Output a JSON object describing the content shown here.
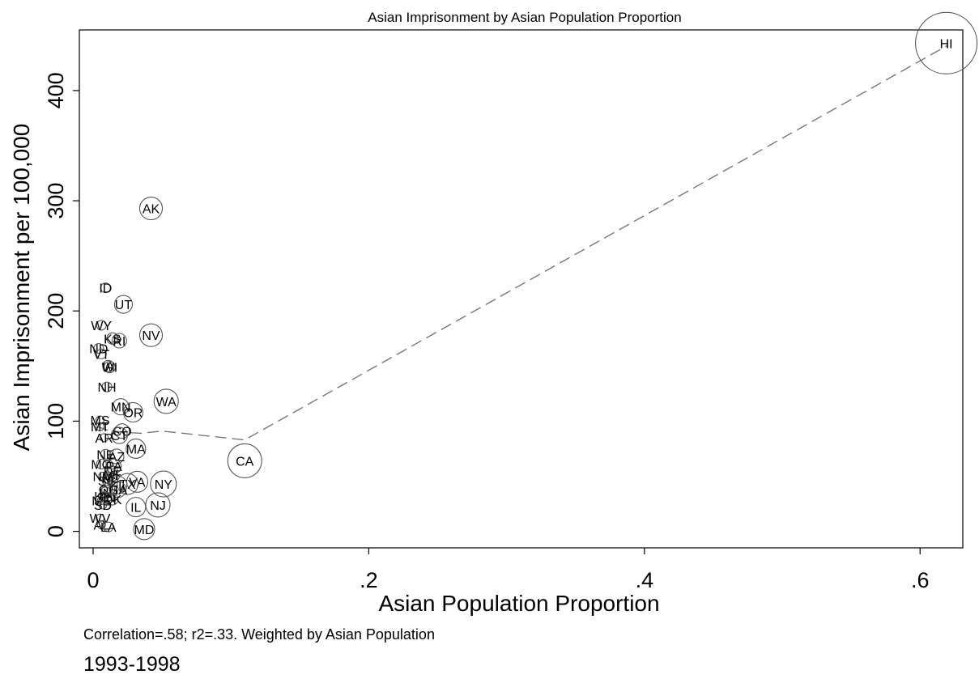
{
  "chart_data": {
    "type": "scatter",
    "title": "Asian  Imprisonment by Asian Population Proportion",
    "xlabel": "Asian  Population Proportion",
    "ylabel": "Asian  Imprisonment per 100,000",
    "xlim": [
      -0.01,
      0.631
    ],
    "ylim": [
      -15,
      455
    ],
    "x_ticks": [
      {
        "value": 0,
        "label": "0"
      },
      {
        "value": 0.2,
        "label": ".2"
      },
      {
        "value": 0.4,
        "label": ".4"
      },
      {
        "value": 0.6,
        "label": ".6"
      }
    ],
    "y_ticks": [
      {
        "value": 0,
        "label": "0"
      },
      {
        "value": 100,
        "label": "100"
      },
      {
        "value": 200,
        "label": "200"
      },
      {
        "value": 300,
        "label": "300"
      },
      {
        "value": 400,
        "label": "400"
      }
    ],
    "grid": false,
    "weighted_markers": true,
    "points": [
      {
        "label": "HI",
        "x": 0.619,
        "y": 443,
        "size": 38
      },
      {
        "label": "AK",
        "x": 0.042,
        "y": 293,
        "size": 14
      },
      {
        "label": "ID",
        "x": 0.009,
        "y": 221,
        "size": 6
      },
      {
        "label": "UT",
        "x": 0.022,
        "y": 206,
        "size": 11
      },
      {
        "label": "WY",
        "x": 0.006,
        "y": 187,
        "size": 6
      },
      {
        "label": "NV",
        "x": 0.042,
        "y": 178,
        "size": 14
      },
      {
        "label": "KS",
        "x": 0.014,
        "y": 175,
        "size": 7
      },
      {
        "label": "RI",
        "x": 0.019,
        "y": 173,
        "size": 9
      },
      {
        "label": "ND",
        "x": 0.004,
        "y": 166,
        "size": 6
      },
      {
        "label": "VT",
        "x": 0.006,
        "y": 161,
        "size": 6
      },
      {
        "label": "IA",
        "x": 0.011,
        "y": 150,
        "size": 7
      },
      {
        "label": "WI",
        "x": 0.012,
        "y": 149,
        "size": 7
      },
      {
        "label": "NH",
        "x": 0.01,
        "y": 131,
        "size": 6
      },
      {
        "label": "WA",
        "x": 0.053,
        "y": 118,
        "size": 15
      },
      {
        "label": "MN",
        "x": 0.02,
        "y": 113,
        "size": 10
      },
      {
        "label": "OR",
        "x": 0.029,
        "y": 108,
        "size": 12
      },
      {
        "label": "MS",
        "x": 0.005,
        "y": 101,
        "size": 5
      },
      {
        "label": "MT",
        "x": 0.005,
        "y": 95,
        "size": 5
      },
      {
        "label": "CO",
        "x": 0.021,
        "y": 91,
        "size": 9
      },
      {
        "label": "CT",
        "x": 0.019,
        "y": 87,
        "size": 10
      },
      {
        "label": "AR",
        "x": 0.008,
        "y": 85,
        "size": 5
      },
      {
        "label": "MA",
        "x": 0.031,
        "y": 75,
        "size": 12
      },
      {
        "label": "NE",
        "x": 0.009,
        "y": 70,
        "size": 6
      },
      {
        "label": "AZ",
        "x": 0.017,
        "y": 68,
        "size": 9
      },
      {
        "label": "CA",
        "x": 0.11,
        "y": 64,
        "size": 21
      },
      {
        "label": "MO",
        "x": 0.006,
        "y": 61,
        "size": 6
      },
      {
        "label": "PA",
        "x": 0.015,
        "y": 59,
        "size": 9
      },
      {
        "label": "DE",
        "x": 0.014,
        "y": 55,
        "size": 6
      },
      {
        "label": "MI",
        "x": 0.013,
        "y": 51,
        "size": 8
      },
      {
        "label": "NM",
        "x": 0.007,
        "y": 50,
        "size": 5
      },
      {
        "label": "NC",
        "x": 0.013,
        "y": 48,
        "size": 8
      },
      {
        "label": "SC",
        "x": 0.01,
        "y": 46,
        "size": 6
      },
      {
        "label": "VA",
        "x": 0.032,
        "y": 45,
        "size": 13
      },
      {
        "label": "TX",
        "x": 0.025,
        "y": 43,
        "size": 13
      },
      {
        "label": "NY",
        "x": 0.051,
        "y": 43,
        "size": 16
      },
      {
        "label": "FL",
        "x": 0.018,
        "y": 42,
        "size": 11
      },
      {
        "label": "OH",
        "x": 0.011,
        "y": 38,
        "size": 8
      },
      {
        "label": "GA",
        "x": 0.018,
        "y": 38,
        "size": 10
      },
      {
        "label": "IN",
        "x": 0.009,
        "y": 35,
        "size": 7
      },
      {
        "label": "KY",
        "x": 0.007,
        "y": 32,
        "size": 5
      },
      {
        "label": "TN",
        "x": 0.01,
        "y": 31,
        "size": 6
      },
      {
        "label": "OK",
        "x": 0.014,
        "y": 29,
        "size": 7
      },
      {
        "label": "ME",
        "x": 0.006,
        "y": 28,
        "size": 5
      },
      {
        "label": "IL",
        "x": 0.031,
        "y": 22,
        "size": 12
      },
      {
        "label": "NJ",
        "x": 0.047,
        "y": 24,
        "size": 15
      },
      {
        "label": "SD",
        "x": 0.007,
        "y": 24,
        "size": 5
      },
      {
        "label": "WV",
        "x": 0.005,
        "y": 12,
        "size": 5
      },
      {
        "label": "AL",
        "x": 0.006,
        "y": 6,
        "size": 5
      },
      {
        "label": "LA",
        "x": 0.011,
        "y": 4,
        "size": 6
      },
      {
        "label": "MD",
        "x": 0.037,
        "y": 2,
        "size": 13
      }
    ],
    "fit_line": {
      "x": [
        0.003,
        0.01,
        0.02,
        0.035,
        0.05,
        0.11,
        0.62
      ],
      "y": [
        95,
        92,
        90,
        89,
        91,
        83,
        441
      ]
    },
    "note": "Correlation=.58; r2=.33. Weighted by Asian  Population",
    "period": "1993-1998"
  }
}
